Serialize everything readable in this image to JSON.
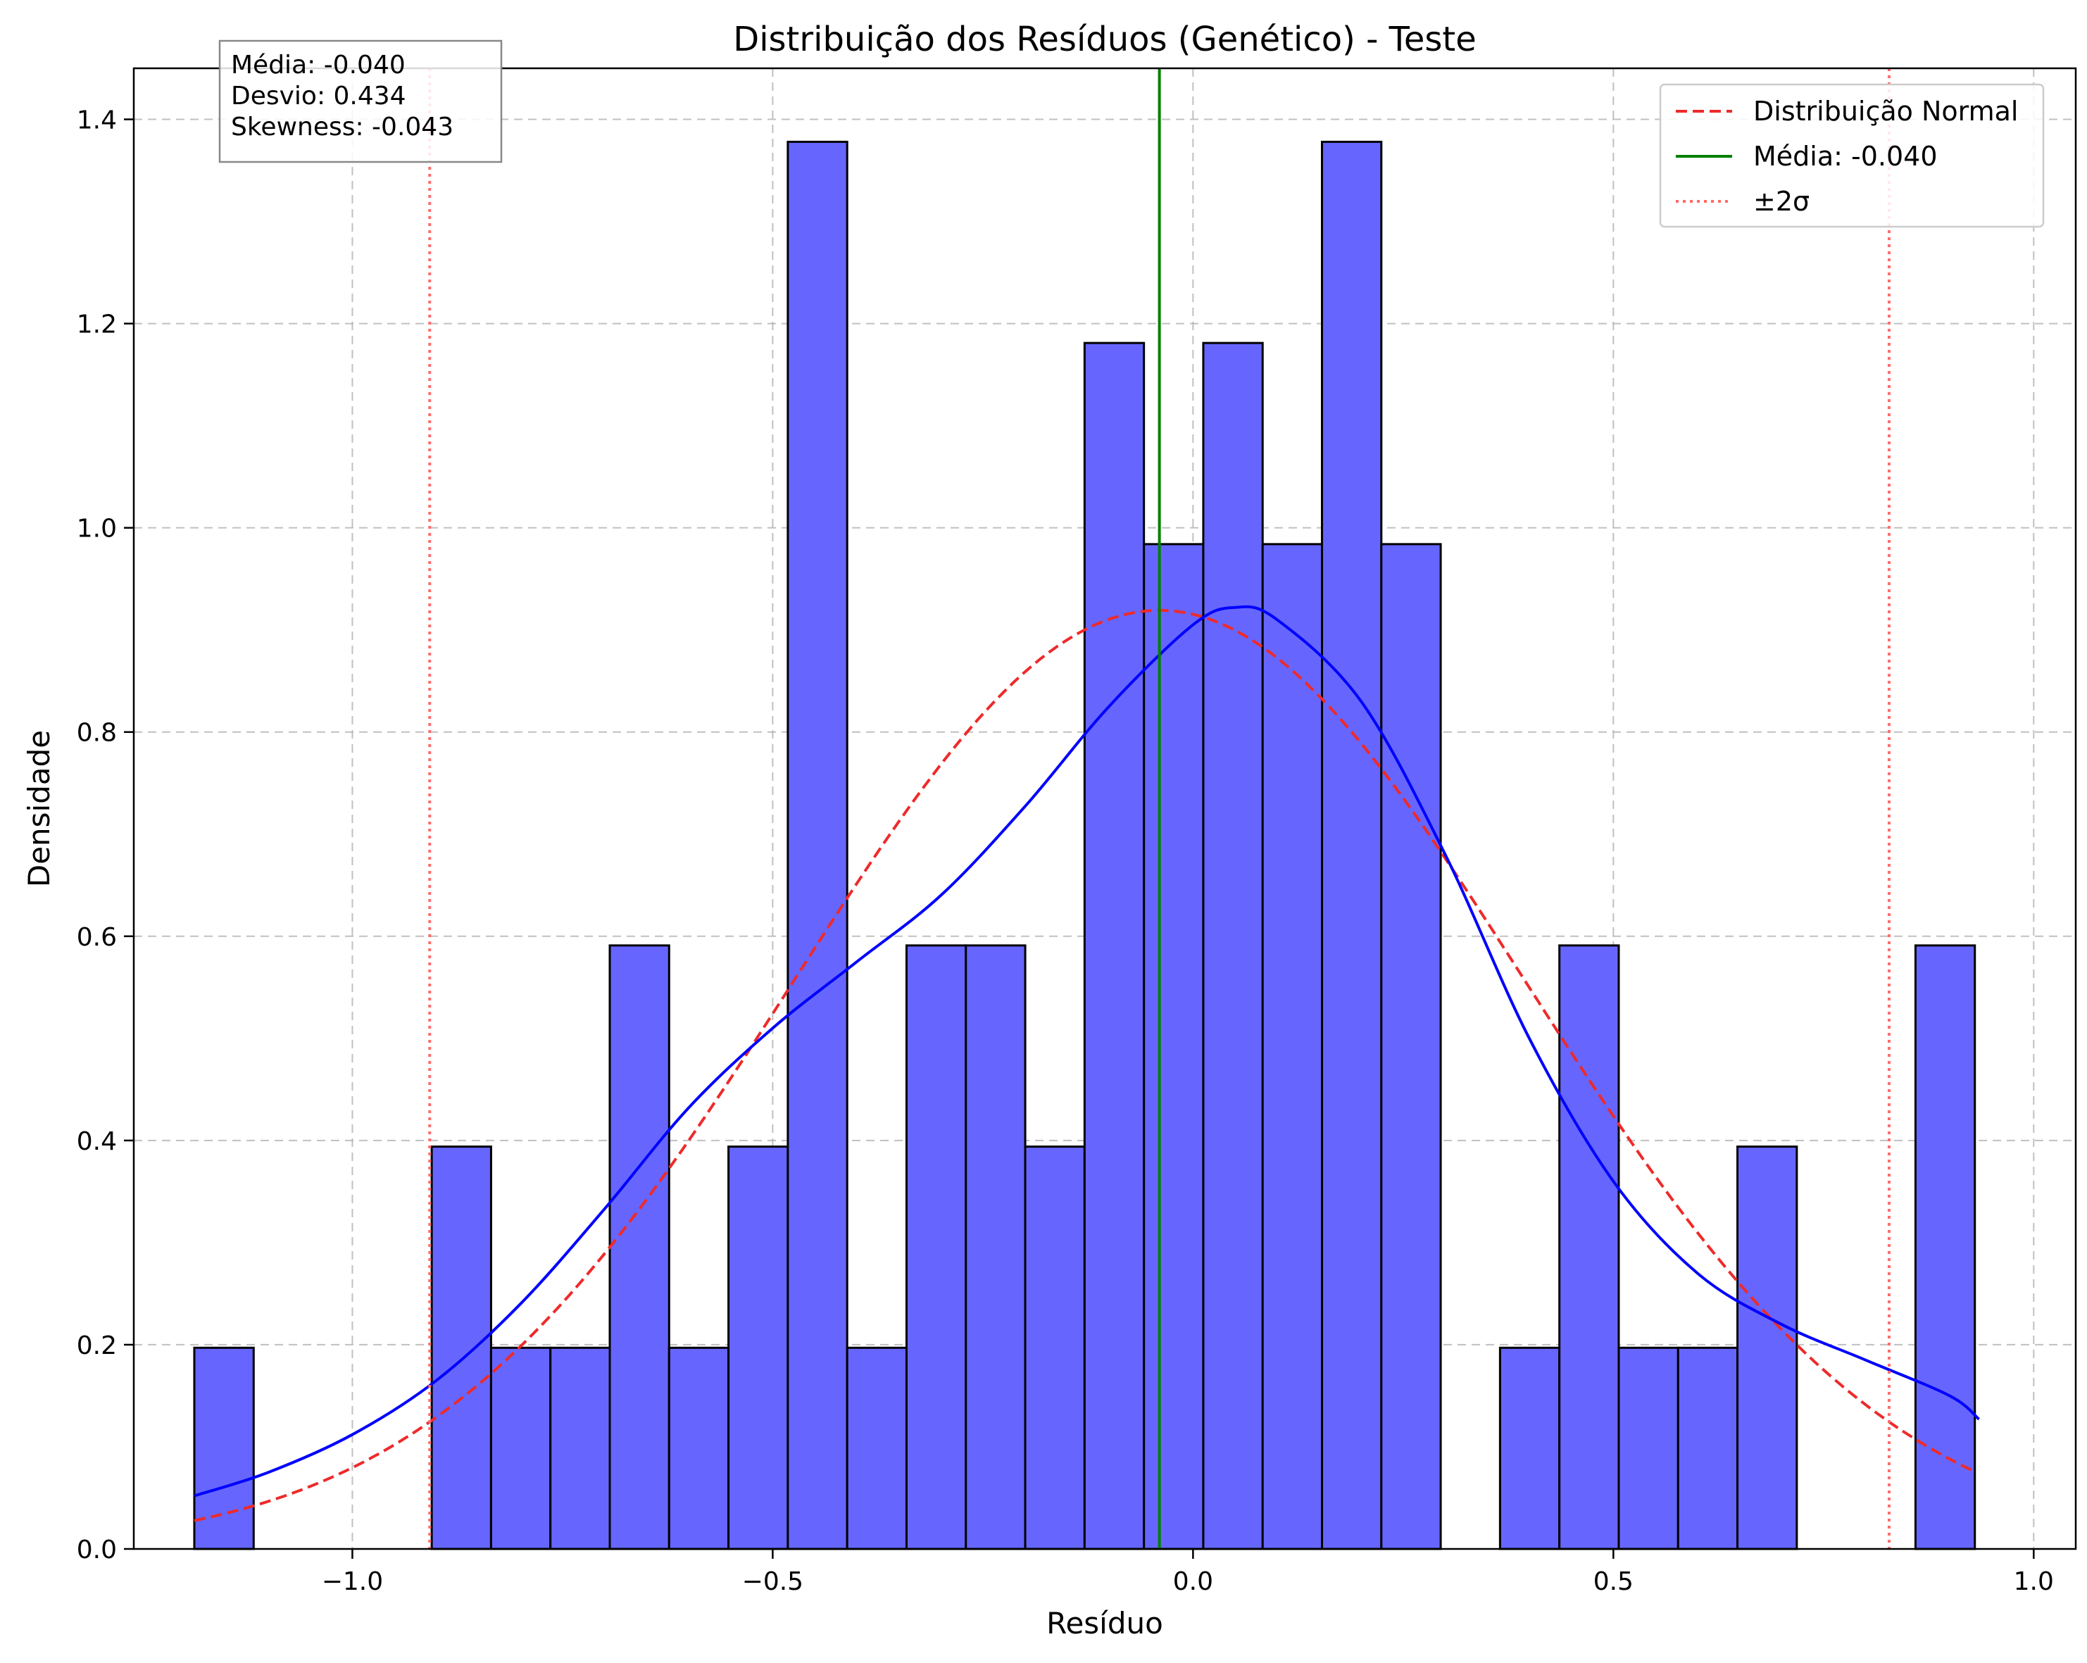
{
  "chart_data": {
    "type": "bar",
    "title": "Distribuição dos Resíduos (Genético) - Teste",
    "xlabel": "Resíduo",
    "ylabel": "Densidade",
    "xlim": [
      -1.26,
      1.05
    ],
    "ylim": [
      0,
      1.45
    ],
    "xticks": [
      -1.0,
      -0.5,
      0.0,
      0.5,
      1.0
    ],
    "xtick_labels": [
      "−1.0",
      "−0.5",
      "0.0",
      "0.5",
      "1.0"
    ],
    "yticks": [
      0.0,
      0.2,
      0.4,
      0.6,
      0.8,
      1.0,
      1.2,
      1.4
    ],
    "ytick_labels": [
      "0.0",
      "0.2",
      "0.4",
      "0.6",
      "0.8",
      "1.0",
      "1.2",
      "1.4"
    ],
    "grid": true,
    "legend_position": "top-right",
    "histogram": {
      "bin_start": -1.188,
      "bin_width": 0.0706,
      "densities": [
        0.197,
        0,
        0,
        0,
        0.394,
        0.197,
        0.197,
        0.591,
        0.197,
        0.394,
        1.378,
        0.197,
        0.591,
        0.591,
        0.394,
        1.181,
        0.984,
        1.181,
        0.984,
        1.378,
        0.984,
        0,
        0.197,
        0.591,
        0.197,
        0.197,
        0.394,
        0,
        0,
        0.591
      ],
      "fill_color": "#6666ff",
      "edge_color": "#000000"
    },
    "series": [
      {
        "name": "Distribuição Normal",
        "style": "dashed",
        "color": "#ee2a2a",
        "mean": -0.04,
        "std": 0.434
      },
      {
        "name": "",
        "style": "solid",
        "color": "#0000ff",
        "x": [
          -1.188,
          -1.1,
          -1.0,
          -0.9,
          -0.8,
          -0.7,
          -0.6,
          -0.5,
          -0.4,
          -0.3,
          -0.2,
          -0.1,
          0.0,
          0.05,
          0.1,
          0.2,
          0.3,
          0.4,
          0.5,
          0.6,
          0.7,
          0.8,
          0.9,
          0.935
        ],
        "y": [
          0.052,
          0.075,
          0.112,
          0.165,
          0.24,
          0.333,
          0.432,
          0.51,
          0.575,
          0.64,
          0.727,
          0.825,
          0.905,
          0.922,
          0.91,
          0.83,
          0.68,
          0.5,
          0.36,
          0.27,
          0.22,
          0.185,
          0.15,
          0.127
        ]
      }
    ],
    "vlines": [
      {
        "name": "Média: -0.040",
        "x": -0.04,
        "style": "solid",
        "color": "#008000"
      },
      {
        "name": "±2σ",
        "x": -0.908,
        "style": "dotted",
        "color": "#ff6b6b"
      },
      {
        "name": "±2σ",
        "x": 0.828,
        "style": "dotted",
        "color": "#ff6b6b"
      }
    ],
    "legend": [
      {
        "label": "Distribuição Normal",
        "style": "dashed",
        "color": "#ee2a2a"
      },
      {
        "label": "Média: -0.040",
        "style": "solid",
        "color": "#008000"
      },
      {
        "label": "±2σ",
        "style": "dotted",
        "color": "#ff6b6b"
      }
    ],
    "stats_box": [
      "Média: -0.040",
      "Desvio: 0.434",
      "Skewness: -0.043"
    ]
  }
}
